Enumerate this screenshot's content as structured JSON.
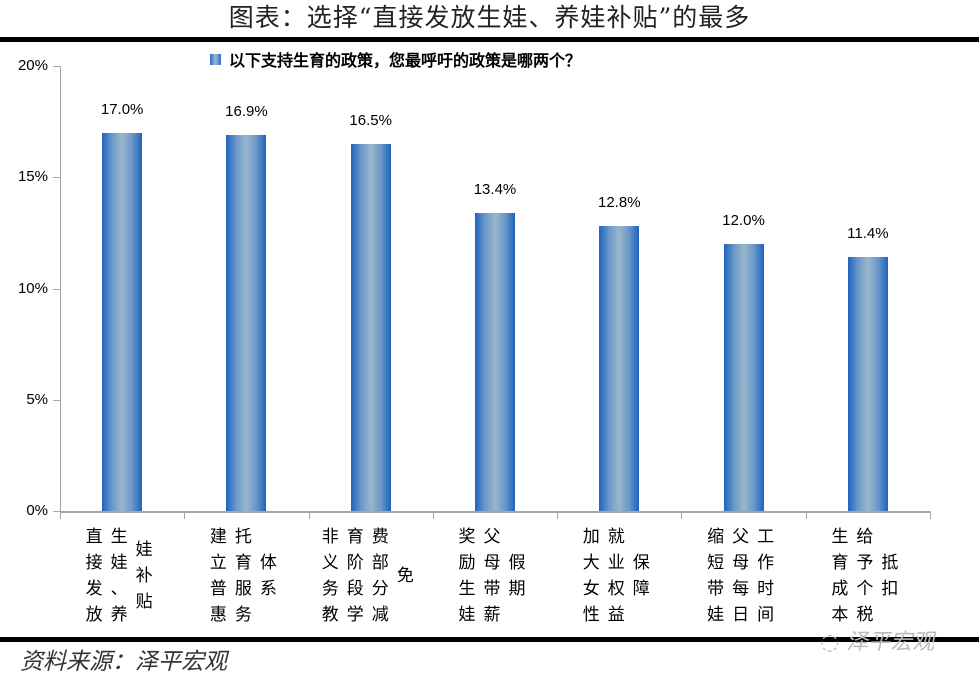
{
  "header": {
    "title": "图表：选择“直接发放生娃、养娃补贴”的最多"
  },
  "footer": {
    "source": "资料来源：泽平宏观",
    "watermark": "泽平宏观"
  },
  "chart_data": {
    "type": "bar",
    "title": "图表：选择“直接发放生娃、养娃补贴”的最多",
    "legend": [
      "以下支持生育的政策，您最呼吁的政策是哪两个？"
    ],
    "legend_position": "top",
    "xlabel": "",
    "ylabel": "",
    "ylim": [
      0,
      20
    ],
    "yticks": [
      "0%",
      "5%",
      "10%",
      "15%",
      "20%"
    ],
    "grid": false,
    "categories": [
      "直接发放生娃、养娃补贴",
      "建立普惠托育服务体系",
      "非义务教育阶段学费部分减免",
      "奖励生娃父母带薪假期",
      "加大女性就业权益保障",
      "缩短带娃父母每日工作时间",
      "生育成本给予个税抵扣"
    ],
    "values": [
      17.0,
      16.9,
      16.5,
      13.4,
      12.8,
      12.0,
      11.4
    ],
    "value_labels": [
      "17.0%",
      "16.9%",
      "16.5%",
      "13.4%",
      "12.8%",
      "12.0%",
      "11.4%"
    ],
    "series": [
      {
        "name": "以下支持生育的政策，您最呼吁的政策是哪两个？",
        "values": [
          17.0,
          16.9,
          16.5,
          13.4,
          12.8,
          12.0,
          11.4
        ],
        "color": "#2a6fc4"
      }
    ],
    "label_columns": [
      [
        "直接发放",
        "生娃、养",
        "娃补贴"
      ],
      [
        "建立普惠",
        "托育服务",
        "体系"
      ],
      [
        "非义务教",
        "育阶段学",
        "费部分减",
        "免"
      ],
      [
        "奖励生娃",
        "父母带薪",
        "假期"
      ],
      [
        "加大女性",
        "就业权益",
        "保障"
      ],
      [
        "缩短带娃",
        "父母每日",
        "工作时间"
      ],
      [
        "生育成本",
        "给予个税",
        "抵扣"
      ]
    ]
  }
}
